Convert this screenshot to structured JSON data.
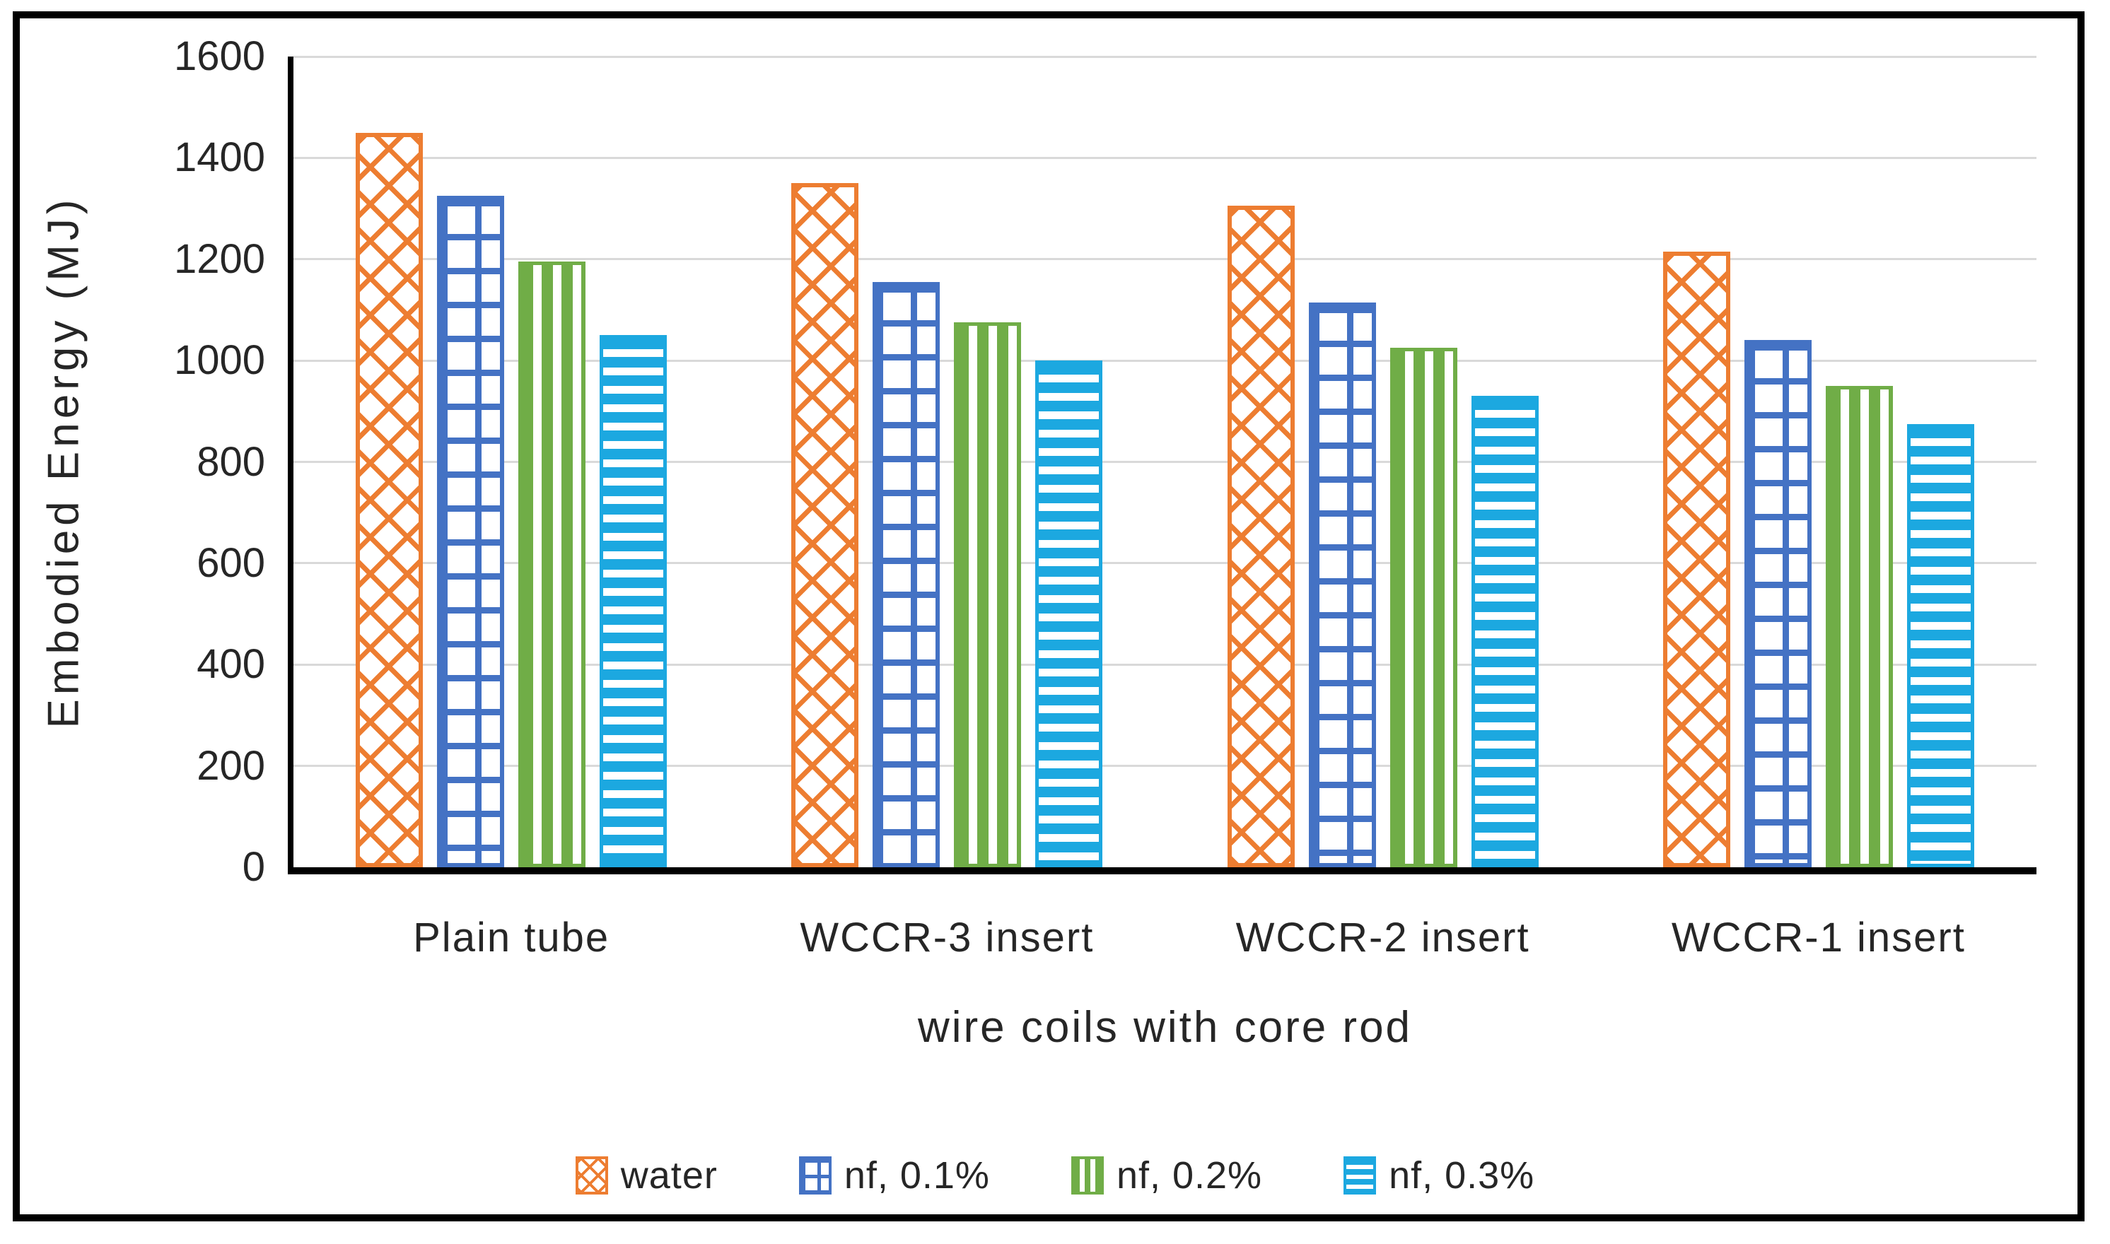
{
  "chart_data": {
    "type": "bar",
    "title": "",
    "xlabel": "wire coils with core rod",
    "ylabel": "Embodied Energy (MJ)",
    "categories": [
      "Plain tube",
      "WCCR-3 insert",
      "WCCR-2 insert",
      "WCCR-1 insert"
    ],
    "series": [
      {
        "name": "water",
        "color": "#ED7D31",
        "pattern": "diagonal-crosshatch",
        "values": [
          1450,
          1350,
          1305,
          1215
        ]
      },
      {
        "name": "nf, 0.1%",
        "color": "#4472C4",
        "pattern": "grid",
        "values": [
          1325,
          1155,
          1115,
          1040
        ]
      },
      {
        "name": "nf, 0.2%",
        "color": "#70AD47",
        "pattern": "vertical-stripes",
        "values": [
          1195,
          1075,
          1025,
          950
        ]
      },
      {
        "name": "nf, 0.3%",
        "color": "#1CA8E0",
        "pattern": "horizontal-stripes",
        "values": [
          1050,
          1000,
          930,
          875
        ]
      }
    ],
    "y_ticks": [
      0,
      200,
      400,
      600,
      800,
      1000,
      1200,
      1400,
      1600
    ],
    "ylim": [
      0,
      1600
    ],
    "grid": "horizontal",
    "gridline_color": "#D9D9D9",
    "axis_color": "#000000",
    "frame_color": "#000000",
    "legend_position": "bottom"
  }
}
